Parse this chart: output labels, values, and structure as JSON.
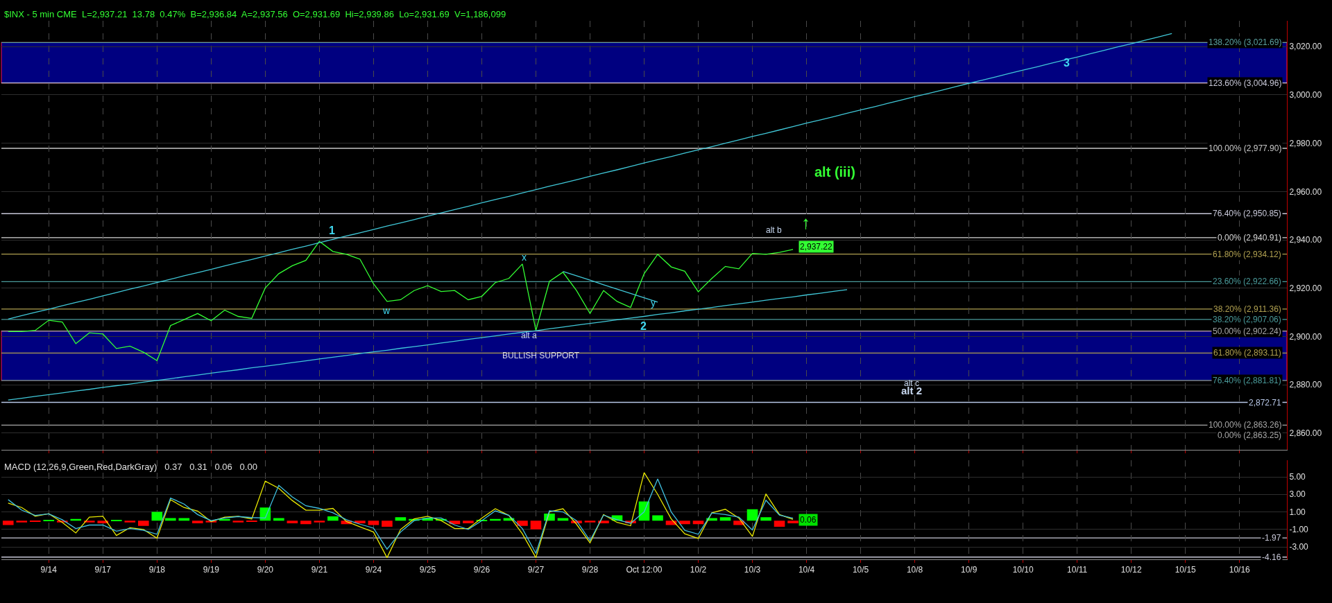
{
  "chart_data": [
    {
      "type": "line",
      "title": "$INX - 5 min CME  L=2,937.21  13.78  0.47%  B=2,936.84  A=2,937.56  O=2,931.69  Hi=2,939.86  Lo=2,931.69  V=1,186,099",
      "categories": [
        null,
        null,
        null,
        null,
        null,
        null,
        null,
        null,
        null,
        null,
        null,
        null,
        null,
        null,
        null,
        null,
        null,
        null,
        null,
        null,
        null,
        null,
        null,
        null,
        null,
        null,
        null,
        null,
        null,
        null,
        null,
        null,
        null,
        null,
        null,
        null,
        null,
        null,
        null,
        null,
        null,
        null,
        null,
        null,
        null,
        null,
        null,
        null,
        null,
        null,
        null,
        null,
        null,
        null,
        null,
        null,
        null,
        null,
        null,
        null,
        null,
        null,
        null,
        null,
        null,
        null,
        null,
        null,
        null,
        null,
        null,
        null,
        null,
        null,
        null,
        null,
        null,
        null,
        null,
        null,
        null,
        null,
        null,
        null,
        null,
        null,
        null,
        null,
        null,
        null,
        null,
        null,
        null,
        null,
        null
      ],
      "series": [
        {
          "color": "#33ff33",
          "values": [
            2902.0,
            2902.0,
            2902.5,
            2906.7,
            2906.0,
            2897.0,
            2901.5,
            2901.0,
            2895.0,
            2896.0,
            2893.5,
            2890.0,
            2904.5,
            2907.0,
            2909.5,
            2906.5,
            2910.9,
            2908.3,
            2907.5,
            2920.1,
            2926.0,
            2929.3,
            2931.5,
            2939.4,
            2935.2,
            2934.0,
            2932.0,
            2921.8,
            2914.5,
            2915.2,
            2919.0,
            2921.0,
            2918.6,
            2919.0,
            2915.2,
            2916.6,
            2922.3,
            2924.0,
            2930.0,
            2902.5,
            2922.8,
            2926.6,
            2919.0,
            2909.5,
            2919.0,
            2914.5,
            2912.0,
            2926.0,
            2934.0,
            2928.8,
            2927.0,
            2918.5,
            2924.0,
            2929.0,
            2928.0,
            2934.4,
            2934.0,
            2934.8,
            2936.0,
            null,
            null,
            null,
            null,
            null,
            null,
            null,
            null,
            null,
            null,
            null,
            null,
            null,
            null,
            null,
            null,
            null,
            null,
            null,
            null,
            null,
            null,
            null,
            null,
            null,
            null,
            null,
            null,
            null,
            null,
            null,
            null,
            null,
            null,
            null,
            null
          ]
        },
        {
          "color": "#40c8d8",
          "values": [
            2907.2,
            2908.6,
            2910.0,
            2911.3,
            2912.7,
            2914.1,
            2915.4,
            2916.8,
            2918.2,
            2919.6,
            2920.9,
            2922.3,
            2923.7,
            2925.1,
            2926.4,
            2927.8,
            2929.2,
            2930.6,
            2931.9,
            2933.3,
            2934.7,
            2936.1,
            2937.4,
            2938.8,
            2940.2,
            2941.6,
            2942.9,
            2944.3,
            2945.7,
            2947.0,
            2948.4,
            2949.8,
            2951.2,
            2952.5,
            2953.9,
            2955.3,
            2956.7,
            2958.0,
            2959.4,
            2960.8,
            2962.2,
            2963.5,
            2964.9,
            2966.3,
            2967.7,
            2969.0,
            2970.4,
            2971.8,
            2973.2,
            2974.5,
            2975.9,
            2977.3,
            2978.6,
            2980.0,
            2981.4,
            2982.8,
            2984.1,
            2985.5,
            2986.9,
            2988.3,
            2989.6,
            2991.0,
            2992.4,
            2993.8,
            2995.1,
            2996.5,
            2997.9,
            2999.3,
            3000.6,
            3002.0,
            3003.4,
            3004.8,
            3006.1,
            3007.5,
            3008.9,
            3010.3,
            3011.6,
            3013.0,
            3014.4,
            3015.7,
            3017.1,
            3018.5,
            3019.9,
            3021.2,
            3022.6,
            3024.0,
            3025.4,
            null,
            null,
            null,
            null,
            null,
            null,
            null,
            null
          ]
        },
        {
          "color": "#40c8d8",
          "values": [
            2873.7,
            2874.4,
            2875.2,
            2875.9,
            2876.6,
            2877.4,
            2878.1,
            2878.9,
            2879.6,
            2880.3,
            2881.1,
            2881.8,
            2882.5,
            2883.3,
            2884.0,
            2884.8,
            2885.5,
            2886.2,
            2887.0,
            2887.7,
            2888.4,
            2889.2,
            2889.9,
            2890.7,
            2891.4,
            2892.1,
            2892.9,
            2893.6,
            2894.3,
            2895.1,
            2895.8,
            2896.5,
            2897.3,
            2898.0,
            2898.8,
            2899.5,
            2900.2,
            2901.0,
            2901.7,
            2902.4,
            2903.2,
            2903.9,
            2904.7,
            2905.4,
            2906.1,
            2906.9,
            2907.6,
            2908.3,
            2909.1,
            2909.8,
            2910.6,
            2911.3,
            2912.0,
            2912.8,
            2913.5,
            2914.2,
            2915.0,
            2915.7,
            2916.4,
            2917.2,
            2917.9,
            2918.7,
            2919.4,
            null,
            null,
            null,
            null,
            null,
            null,
            null,
            null,
            null,
            null,
            null,
            null,
            null,
            null,
            null,
            null,
            null,
            null,
            null,
            null,
            null,
            null,
            null,
            null,
            null,
            null,
            null,
            null,
            null,
            null,
            null,
            null
          ]
        },
        {
          "color": "#40c8d8",
          "values": [
            null,
            null,
            null,
            null,
            null,
            null,
            null,
            null,
            null,
            null,
            null,
            null,
            null,
            null,
            null,
            null,
            null,
            null,
            null,
            null,
            null,
            null,
            null,
            null,
            null,
            null,
            null,
            null,
            null,
            null,
            null,
            null,
            null,
            null,
            null,
            null,
            null,
            null,
            null,
            null,
            null,
            2926.9,
            2925.1,
            2923.3,
            2921.4,
            2919.6,
            2917.8,
            2916.0,
            2914.2,
            null,
            null,
            null,
            null,
            null,
            null,
            null,
            null,
            null,
            null,
            null,
            null,
            null,
            null,
            null,
            null,
            null,
            null,
            null,
            null,
            null,
            null,
            null,
            null,
            null,
            null,
            null,
            null,
            null,
            null,
            null,
            null,
            null,
            null,
            null,
            null,
            null,
            null,
            null,
            null,
            null,
            null,
            null,
            null,
            null,
            null
          ]
        }
      ],
      "bands": [
        {
          "axis": "y",
          "from": 3004.96,
          "to": 3021.69,
          "label": "3",
          "color": "#000080"
        },
        {
          "axis": "y",
          "from": 2881.81,
          "to": 2902.24,
          "label": "BULLISH SUPPORT",
          "color": "#000080"
        }
      ],
      "ref_lines": [
        {
          "axis": "y",
          "value": 3021.69,
          "label": "138.20% (3,021.69)",
          "color": "#5aa0a0"
        },
        {
          "axis": "y",
          "value": 3004.96,
          "label": "123.60% (3,004.96)",
          "color": "#c8c8d8"
        },
        {
          "axis": "y",
          "value": 2977.9,
          "label": "100.00% (2,977.90)",
          "color": "#c8c8c8"
        },
        {
          "axis": "y",
          "value": 2950.85,
          "label": "76.40% (2,950.85)",
          "color": "#c8c8d8"
        },
        {
          "axis": "y",
          "value": 2940.91,
          "label": "0.00% (2,940.91)",
          "color": "#d8d8d8"
        },
        {
          "axis": "y",
          "value": 2934.12,
          "label": "61.80% (2,934.12)",
          "color": "#b0a050"
        },
        {
          "axis": "y",
          "value": 2922.66,
          "label": "23.60% (2,922.66)",
          "color": "#4a9a9a"
        },
        {
          "axis": "y",
          "value": 2911.36,
          "label": "38.20% (2,911.36)",
          "color": "#b0a050"
        },
        {
          "axis": "y",
          "value": 2907.06,
          "label": "38.20% (2,907.06)",
          "color": "#4a9a9a"
        },
        {
          "axis": "y",
          "value": 2902.24,
          "label": "50.00% (2,902.24)",
          "color": "#a8a8a8"
        },
        {
          "axis": "y",
          "value": 2893.11,
          "label": "61.80% (2,893.11)",
          "color": "#b0a050"
        },
        {
          "axis": "y",
          "value": 2881.81,
          "label": "76.40% (2,881.81)",
          "color": "#4a9a9a"
        },
        {
          "axis": "y",
          "value": 2872.71,
          "label": "2,872.71",
          "color": "#b8c8e8"
        },
        {
          "axis": "y",
          "value": 2863.26,
          "label": "100.00% (2,863.26)",
          "color": "#a8a8a8"
        }
      ],
      "annotations": [
        "1",
        "w",
        "x",
        "y",
        "2",
        "alt a",
        "alt b",
        "↑",
        "alt (iii)",
        "alt c",
        "alt 2",
        "2,937.22",
        "0.00% (2,863.25)"
      ],
      "ylim": [
        2853,
        3030.7
      ],
      "yticks": [
        {
          "value": 2860,
          "label": "2,860.00"
        },
        {
          "value": 2880,
          "label": "2,880.00"
        },
        {
          "value": 2900,
          "label": "2,900.00"
        },
        {
          "value": 2920,
          "label": "2,920.00"
        },
        {
          "value": 2940,
          "label": "2,940.00"
        },
        {
          "value": 2960,
          "label": "2,960.00"
        },
        {
          "value": 2980,
          "label": "2,980.00"
        },
        {
          "value": 3000,
          "label": "3,000.00"
        },
        {
          "value": 3020,
          "label": "3,020.00"
        }
      ],
      "tick_labels": "y",
      "grid": true
    },
    {
      "type": "line",
      "title": "MACD (12,26,9,Green,Red,DarkGray)   0.37   0.31   0.06   0.00",
      "categories": [
        null,
        null,
        null,
        "9/14",
        null,
        null,
        null,
        "9/17",
        null,
        null,
        null,
        "9/18",
        null,
        null,
        null,
        "9/19",
        null,
        null,
        null,
        "9/20",
        null,
        null,
        null,
        "9/21",
        null,
        null,
        null,
        "9/24",
        null,
        null,
        null,
        "9/25",
        null,
        null,
        null,
        "9/26",
        null,
        null,
        null,
        "9/27",
        null,
        null,
        null,
        "9/28",
        null,
        null,
        null,
        "Oct 12:00",
        null,
        null,
        null,
        "10/2",
        null,
        null,
        null,
        "10/3",
        null,
        null,
        null,
        "10/4",
        null,
        null,
        null,
        "10/5",
        null,
        null,
        null,
        "10/8",
        null,
        null,
        null,
        "10/9",
        null,
        null,
        null,
        "10/10",
        null,
        null,
        null,
        "10/11",
        null,
        null,
        null,
        "10/12",
        null,
        null,
        null,
        "10/15",
        null,
        null,
        null,
        "10/16",
        null,
        null,
        null
      ],
      "series": [
        {
          "type": "bar",
          "values": [
            -0.5,
            -0.2,
            -0.1,
            0.1,
            -0.2,
            0.2,
            -0.2,
            -0.3,
            0.1,
            -0.2,
            -0.6,
            1.0,
            0.3,
            0.3,
            -0.3,
            -0.2,
            0.2,
            -0.2,
            -0.1,
            1.5,
            0.3,
            -0.3,
            -0.4,
            -0.2,
            0.5,
            -0.4,
            -0.3,
            -0.5,
            -0.7,
            0.4,
            0.2,
            0.3,
            0.2,
            -0.4,
            -0.3,
            0.1,
            0.2,
            0.3,
            -0.6,
            -1.0,
            0.8,
            0.3,
            -0.3,
            -0.2,
            -0.3,
            0.6,
            -0.3,
            2.2,
            0.6,
            -0.5,
            -0.4,
            -0.4,
            0.3,
            0.4,
            -0.5,
            1.3,
            0.4,
            -0.7,
            -0.3,
            null,
            null,
            null,
            null,
            null,
            null,
            null,
            null,
            null,
            null,
            null,
            null,
            null,
            null,
            null,
            null,
            null,
            null,
            null,
            null,
            null,
            null,
            null,
            null,
            null,
            null,
            null,
            null,
            null,
            null,
            null,
            null,
            null,
            null,
            null,
            null
          ],
          "colors": [
            "#ff0000",
            "#ff0000",
            "#ff0000",
            "#00ff00",
            "#ff0000",
            "#00ff00",
            "#ff0000",
            "#ff0000",
            "#00ff00",
            "#ff0000",
            "#ff0000",
            "#00ff00",
            "#00ff00",
            "#00ff00",
            "#ff0000",
            "#ff0000",
            "#00ff00",
            "#ff0000",
            "#ff0000",
            "#00ff00",
            "#00ff00",
            "#ff0000",
            "#ff0000",
            "#ff0000",
            "#00ff00",
            "#ff0000",
            "#ff0000",
            "#ff0000",
            "#ff0000",
            "#00ff00",
            "#00ff00",
            "#00ff00",
            "#00ff00",
            "#ff0000",
            "#ff0000",
            "#00ff00",
            "#00ff00",
            "#00ff00",
            "#ff0000",
            "#ff0000",
            "#00ff00",
            "#00ff00",
            "#ff0000",
            "#ff0000",
            "#ff0000",
            "#00ff00",
            "#ff0000",
            "#00ff00",
            "#00ff00",
            "#ff0000",
            "#ff0000",
            "#ff0000",
            "#00ff00",
            "#00ff00",
            "#ff0000",
            "#00ff00",
            "#00ff00",
            "#ff0000",
            "#ff0000",
            null,
            null,
            null,
            null,
            null,
            null,
            null,
            null,
            null,
            null,
            null,
            null,
            null,
            null,
            null,
            null,
            null,
            null,
            null,
            null,
            null,
            null,
            null,
            null,
            null,
            null,
            null,
            null,
            null,
            null,
            null,
            null,
            null,
            null,
            null,
            null
          ]
        },
        {
          "color": "#e8e800",
          "values": [
            2.0,
            1.5,
            0.5,
            0.8,
            -0.2,
            -1.4,
            0.4,
            0.5,
            -1.7,
            -0.8,
            -1.0,
            -2.0,
            2.4,
            1.5,
            1.1,
            -0.1,
            0.4,
            0.5,
            0.2,
            4.52,
            3.7,
            2.3,
            1.2,
            1.2,
            1.4,
            -0.1,
            -0.7,
            -1.3,
            -4.23,
            -1.0,
            0.2,
            0.5,
            0.0,
            -0.9,
            -0.9,
            0.3,
            1.36,
            0.6,
            -1.5,
            -4.23,
            1.0,
            1.36,
            -0.4,
            -2.53,
            0.7,
            -0.2,
            -0.58,
            5.49,
            3.0,
            0.2,
            -1.5,
            -2.04,
            0.9,
            1.3,
            0.3,
            -1.8,
            3.06,
            0.7,
            0.15,
            null,
            null,
            null,
            null,
            null,
            null,
            null,
            null,
            null,
            null,
            null,
            null,
            null,
            null,
            null,
            null,
            null,
            null,
            null,
            null,
            null,
            null,
            null,
            null,
            null,
            null,
            null,
            null,
            null,
            null,
            null,
            null,
            null,
            null,
            null,
            null
          ]
        },
        {
          "color": "#40c0e0",
          "values": [
            2.4,
            1.2,
            0.6,
            0.78,
            0.1,
            -0.9,
            -0.5,
            -0.5,
            -1.2,
            -0.9,
            -1.1,
            -1.55,
            2.58,
            1.9,
            0.7,
            0.0,
            0.3,
            0.47,
            0.35,
            0.3,
            4.03,
            2.7,
            1.7,
            1.4,
            0.9,
            0.1,
            -0.4,
            -0.85,
            -3.26,
            -1.3,
            0.0,
            0.3,
            0.3,
            -0.5,
            -1.0,
            0.0,
            1.12,
            0.6,
            -0.9,
            -3.74,
            1.12,
            1.0,
            0.0,
            -2.28,
            0.63,
            0.1,
            -0.3,
            1.0,
            4.76,
            1.0,
            -1.1,
            -1.55,
            0.87,
            0.7,
            0.4,
            -1.07,
            2.33,
            0.63,
            0.29,
            null,
            null,
            null,
            null,
            null,
            null,
            null,
            null,
            null,
            null,
            null,
            null,
            null,
            null,
            null,
            null,
            null,
            null,
            null,
            null,
            null,
            null,
            null,
            null,
            null,
            null,
            null,
            null,
            null,
            null,
            null,
            null,
            null,
            null,
            null,
            null
          ]
        }
      ],
      "ref_lines": [
        {
          "axis": "y",
          "value": -1.97,
          "label": "-1.97",
          "color": "#c8c8d8"
        },
        {
          "axis": "y",
          "value": -4.16,
          "label": "-4.16",
          "color": "#c8c8d8"
        }
      ],
      "annotations": [
        "0.06"
      ],
      "ylim": [
        -4.4,
        6.9
      ],
      "yticks": [
        {
          "value": 5,
          "label": "5.00"
        },
        {
          "value": 3,
          "label": "3.00"
        },
        {
          "value": 1,
          "label": "1.00"
        },
        {
          "value": -1,
          "label": "-1.00"
        },
        {
          "value": -3,
          "label": "-3.00"
        }
      ],
      "grid": true
    }
  ]
}
